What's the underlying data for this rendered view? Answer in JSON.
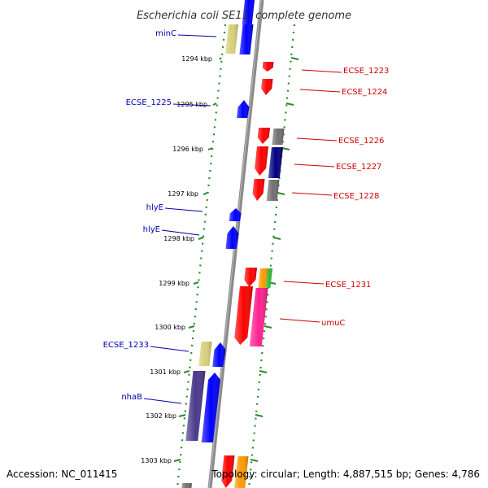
{
  "title": "Escherichia coli SE11, complete genome",
  "footer": {
    "accession": "Accession: NC_011415",
    "topology": "Topology: circular; Length: 4,887,515 bp; Genes: 4,786"
  },
  "ticks": [
    {
      "label": "1294 kbp"
    },
    {
      "label": "1295 kbp"
    },
    {
      "label": "1296 kbp"
    },
    {
      "label": "1297 kbp"
    },
    {
      "label": "1298 kbp"
    },
    {
      "label": "1299 kbp"
    },
    {
      "label": "1300 kbp"
    },
    {
      "label": "1301 kbp"
    },
    {
      "label": "1302 kbp"
    },
    {
      "label": "1303 kbp"
    }
  ],
  "left_labels": [
    {
      "text": "minC"
    },
    {
      "text": "ECSE_1225"
    },
    {
      "text": "hlyE"
    },
    {
      "text": "hlyE"
    },
    {
      "text": "ECSE_1233"
    },
    {
      "text": "nhaB"
    }
  ],
  "right_labels": [
    {
      "text": "ECSE_1223"
    },
    {
      "text": "ECSE_1224"
    },
    {
      "text": "ECSE_1226"
    },
    {
      "text": "ECSE_1227"
    },
    {
      "text": "ECSE_1228"
    },
    {
      "text": "ECSE_1231"
    },
    {
      "text": "umuC"
    }
  ],
  "colors": {
    "backbone": "#808080",
    "tick_dots": "#2a8a2a",
    "left_label": "#0000aa",
    "right_label": "#cc0000",
    "blue_gene": "#0000ff",
    "red_gene": "#ff0000",
    "grey_gene": "#707070",
    "navy_gene": "#000080",
    "khaki_gene": "#d8cf78",
    "purple_gene": "#4a3a8a",
    "pink_gene": "#ff2090",
    "orange_gene": "#ff9900",
    "green_gene": "#33bb33"
  }
}
